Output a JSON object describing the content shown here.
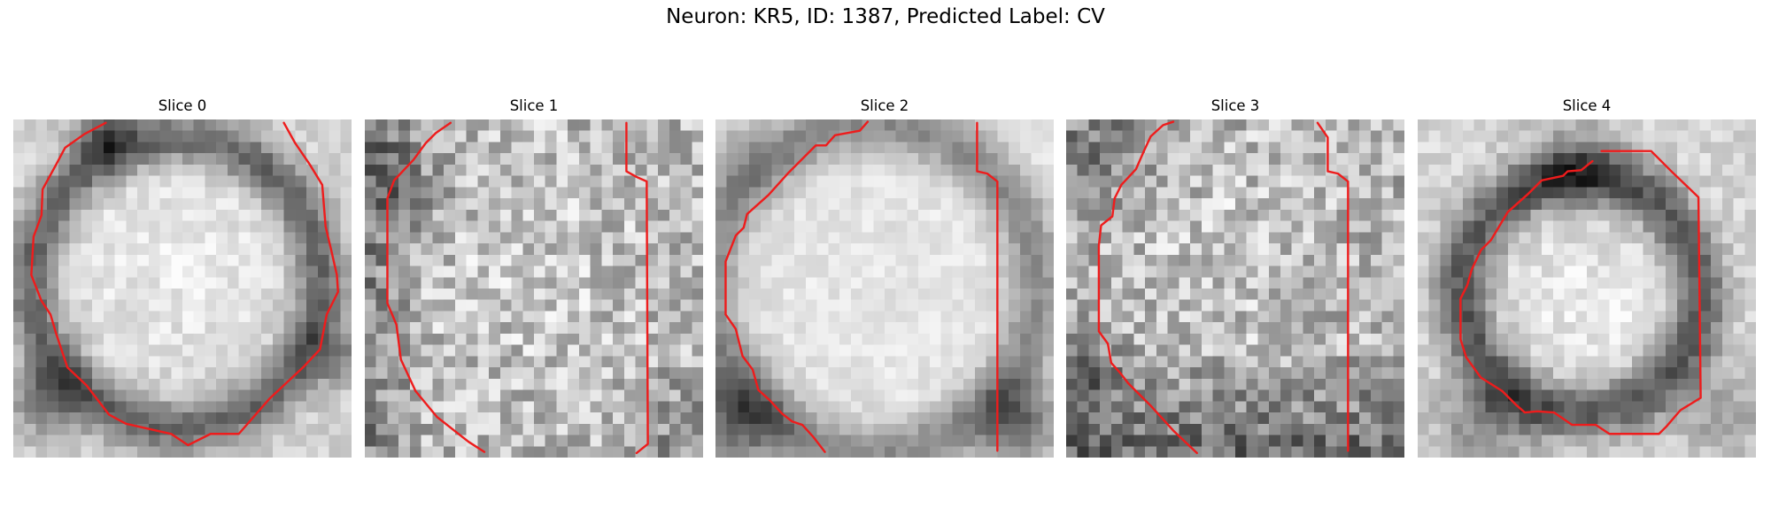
{
  "figure": {
    "title": "Neuron: KR5, ID: 1387, Predicted Label: CV"
  },
  "panels": [
    {
      "title": "Slice 0",
      "pattern": "ring-dark-lower"
    },
    {
      "title": "Slice 1",
      "pattern": "noisy-left-dark"
    },
    {
      "title": "Slice 2",
      "pattern": "bright-center"
    },
    {
      "title": "Slice 3",
      "pattern": "noisy-bottom-dark"
    },
    {
      "title": "Slice 4",
      "pattern": "ring-dark-upper"
    }
  ],
  "colors": {
    "contour": "#ee1c1c",
    "background": "#ffffff",
    "colormap": "grayscale"
  }
}
